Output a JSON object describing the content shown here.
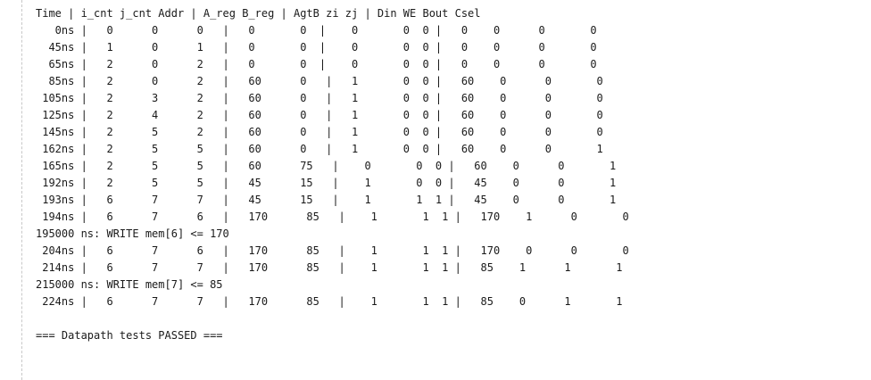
{
  "console": {
    "lines": [
      "Time | i_cnt j_cnt Addr | A_reg B_reg | AgtB zi zj | Din WE Bout Csel",
      "   0ns |   0      0      0   |   0       0  |    0       0  0 |   0    0      0       0",
      "  45ns |   1      0      1   |   0       0  |    0       0  0 |   0    0      0       0",
      "  65ns |   2      0      2   |   0       0  |    0       0  0 |   0    0      0       0",
      "  85ns |   2      0      2   |   60      0   |   1       0  0 |   60    0      0       0",
      " 105ns |   2      3      2   |   60      0   |   1       0  0 |   60    0      0       0",
      " 125ns |   2      4      2   |   60      0   |   1       0  0 |   60    0      0       0",
      " 145ns |   2      5      2   |   60      0   |   1       0  0 |   60    0      0       0",
      " 162ns |   2      5      5   |   60      0   |   1       0  0 |   60    0      0       1",
      " 165ns |   2      5      5   |   60      75   |    0       0  0 |   60    0      0       1",
      " 192ns |   2      5      5   |   45      15   |    1       0  0 |   45    0      0       1",
      " 193ns |   6      7      7   |   45      15   |    1       1  1 |   45    0      0       1",
      " 194ns |   6      7      6   |   170      85   |    1       1  1 |   170    1      0       0",
      "195000 ns: WRITE mem[6] <= 170",
      " 204ns |   6      7      6   |   170      85   |    1       1  1 |   170    0      0       0",
      " 214ns |   6      7      7   |   170      85   |    1       1  1 |   85    1      1       1",
      "215000 ns: WRITE mem[7] <= 85",
      " 224ns |   6      7      7   |   170      85   |    1       1  1 |   85    0      1       1",
      "",
      "=== Datapath tests PASSED ==="
    ]
  }
}
